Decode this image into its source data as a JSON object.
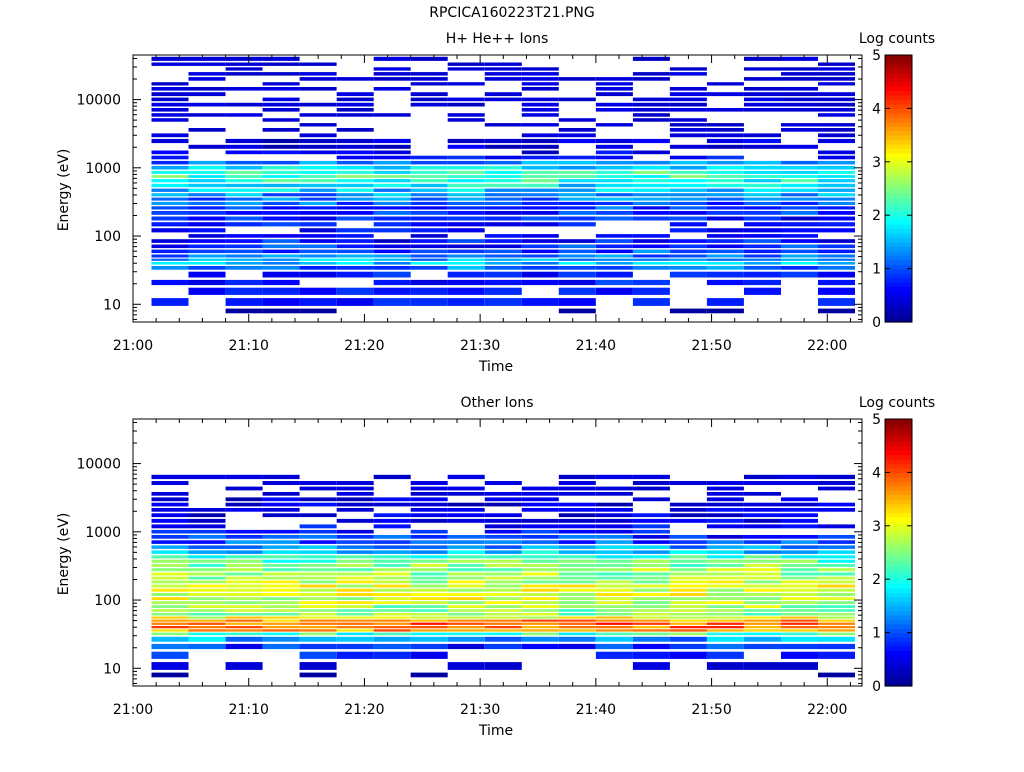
{
  "figure_title": "RPCICA160223T21.PNG",
  "colormap_stops": [
    "#00008f",
    "#0000ff",
    "#0080ff",
    "#00ffff",
    "#80ff80",
    "#ffff00",
    "#ff8000",
    "#ff0000",
    "#800000"
  ],
  "chart_data": [
    {
      "type": "heatmap",
      "title": "H+ He++ Ions",
      "xlabel": "Time",
      "ylabel": "Energy (eV)",
      "colorbar_label": "Log counts",
      "colorbar_range": [
        0,
        5
      ],
      "colorbar_ticks": [
        "0",
        "1",
        "2",
        "3",
        "4",
        "5"
      ],
      "y_scale": "log",
      "ylim": [
        5.5,
        45000
      ],
      "yticks": [
        10,
        100,
        1000,
        10000
      ],
      "ytick_labels": [
        "10",
        "100",
        "1000",
        "10000"
      ],
      "xlim_minutes": [
        0,
        63
      ],
      "xticks_minutes": [
        0,
        10,
        20,
        30,
        40,
        50,
        60
      ],
      "xtick_labels": [
        "21:00",
        "21:10",
        "21:20",
        "21:30",
        "21:40",
        "21:50",
        "22:00"
      ],
      "time_bins_minutes": [
        3.2,
        6.4,
        9.6,
        12.8,
        16.0,
        19.2,
        22.4,
        25.6,
        28.8,
        32.0,
        35.2,
        38.4,
        41.6,
        44.8,
        48.0,
        51.2,
        54.4,
        57.6,
        60.8
      ],
      "energy_bins_eV": [
        8,
        10,
        17,
        20,
        28,
        35,
        40,
        45,
        50,
        60,
        70,
        85,
        100,
        120,
        150,
        180,
        220,
        260,
        300,
        350,
        400,
        470,
        550,
        650,
        750,
        850,
        1000,
        1200,
        1400,
        1700,
        2000,
        2500,
        3000,
        3600,
        4300,
        5000,
        6000,
        7000,
        8500,
        10000,
        12000,
        14500,
        17000,
        20000,
        24000,
        28000,
        33000,
        39000
      ],
      "log_counts_profile": [
        0,
        0.5,
        0.6,
        0.6,
        0.6,
        1.2,
        1.5,
        1.4,
        1.2,
        1.0,
        0.8,
        0.7,
        0.5,
        0.5,
        0.6,
        0.7,
        0.8,
        0.9,
        1.1,
        1.2,
        1.3,
        1.6,
        1.8,
        2.0,
        2.2,
        2.1,
        1.8,
        1.2,
        0.6,
        0.4,
        0.3,
        0.3,
        0.2,
        0.2,
        0.2,
        0.2,
        0.2,
        0.2,
        0.2,
        0.2,
        0.2,
        0.2,
        0.2,
        0.2,
        0.2,
        0.2,
        0.2,
        0.2
      ]
    },
    {
      "type": "heatmap",
      "title": "Other Ions",
      "xlabel": "Time",
      "ylabel": "Energy (eV)",
      "colorbar_label": "Log counts",
      "colorbar_range": [
        0,
        5
      ],
      "colorbar_ticks": [
        "0",
        "1",
        "2",
        "3",
        "4",
        "5"
      ],
      "y_scale": "log",
      "ylim": [
        5.5,
        45000
      ],
      "yticks": [
        10,
        100,
        1000,
        10000
      ],
      "ytick_labels": [
        "10",
        "100",
        "1000",
        "10000"
      ],
      "xlim_minutes": [
        0,
        63
      ],
      "xticks_minutes": [
        0,
        10,
        20,
        30,
        40,
        50,
        60
      ],
      "xtick_labels": [
        "21:00",
        "21:10",
        "21:20",
        "21:30",
        "21:40",
        "21:50",
        "22:00"
      ],
      "time_bins_minutes": [
        3.2,
        6.4,
        9.6,
        12.8,
        16.0,
        19.2,
        22.4,
        25.6,
        28.8,
        32.0,
        35.2,
        38.4,
        41.6,
        44.8,
        48.0,
        51.2,
        54.4,
        57.6,
        60.8
      ],
      "energy_bins_eV": [
        8,
        10,
        17,
        20,
        28,
        32,
        36,
        40,
        45,
        50,
        55,
        62,
        70,
        80,
        92,
        105,
        120,
        140,
        160,
        185,
        210,
        240,
        280,
        320,
        370,
        430,
        500,
        600,
        700,
        850,
        1000,
        1200,
        1450,
        1750,
        2100,
        2500,
        3000,
        3600,
        4300,
        5200,
        6300
      ],
      "log_counts_profile": [
        0,
        0.2,
        0.6,
        0.8,
        1.4,
        2.2,
        3.6,
        3.8,
        3.9,
        3.7,
        3.0,
        2.6,
        2.5,
        2.6,
        2.8,
        2.9,
        3.0,
        3.0,
        2.9,
        2.8,
        2.7,
        2.6,
        2.6,
        2.5,
        2.3,
        2.0,
        1.7,
        1.4,
        1.0,
        0.8,
        0.6,
        0.5,
        0.4,
        0.35,
        0.3,
        0.3,
        0.3,
        0.2,
        0.2,
        0.2,
        0.2
      ]
    }
  ]
}
